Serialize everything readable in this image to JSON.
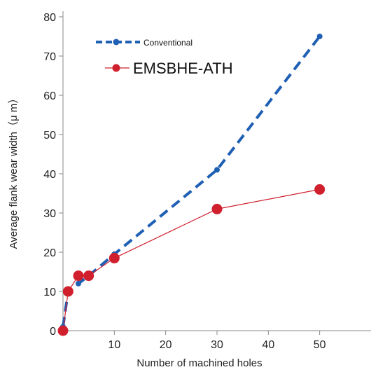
{
  "chart_data": {
    "type": "line",
    "xlabel": "Number of machined holes",
    "ylabel": "Average flank wear width（μ m）",
    "xlim": [
      0,
      60
    ],
    "ylim": [
      0,
      80
    ],
    "xticks": [
      10,
      20,
      30,
      40,
      50
    ],
    "yticks": [
      0,
      10,
      20,
      30,
      40,
      50,
      60,
      70,
      80
    ],
    "grid": false,
    "legend_position": "top-left",
    "series": [
      {
        "name": "Conventional",
        "color": "#1f5fb4",
        "line_style": "dashed",
        "x": [
          0,
          1,
          3,
          5,
          10,
          30,
          50
        ],
        "y": [
          1,
          10,
          12,
          14,
          19.5,
          41,
          75
        ]
      },
      {
        "name": "EMSBHE-ATH",
        "color": "#d0202e",
        "line_style": "solid",
        "x": [
          0,
          1,
          3,
          5,
          10,
          30,
          50
        ],
        "y": [
          0,
          10,
          14,
          14,
          18.5,
          31,
          36
        ]
      }
    ]
  }
}
